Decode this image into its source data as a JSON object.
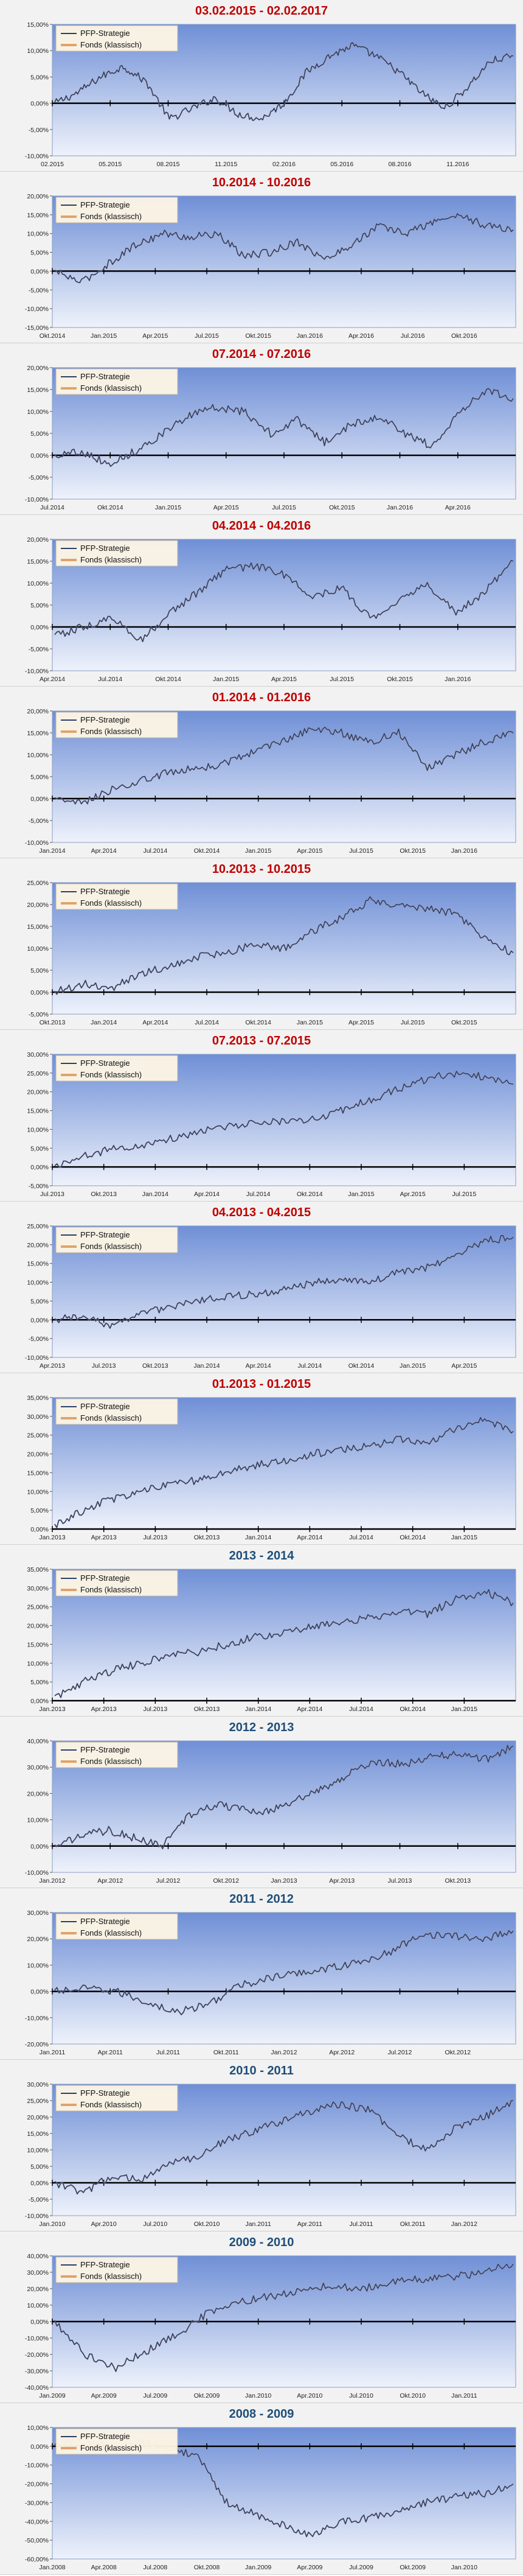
{
  "colors": {
    "title_red": "#c00000",
    "title_blue": "#1f4e79",
    "plot_top": "#6f8fd6",
    "plot_bottom": "#eef2fb",
    "series_strategy": "#2a3f6e",
    "series_fund": "#e0a36a",
    "zero_axis": "#000000"
  },
  "chart_data": [
    {
      "type": "line",
      "title": "03.02.2015 - 02.02.2017",
      "title_color": "red",
      "y_ticks": [
        "15,00%",
        "10,00%",
        "5,00%",
        "0,00%",
        "-5,00%",
        "-10,00%"
      ],
      "x_ticks": [
        "02.2015",
        "05.2015",
        "08.2015",
        "11.2015",
        "02.2016",
        "05.2016",
        "08.2016",
        "11.2016"
      ],
      "ylim": [
        -10,
        15
      ],
      "series": [
        {
          "name": "PFP-Strategie",
          "values": [
            0,
            2,
            5,
            7,
            4,
            -3,
            -1,
            1,
            -2,
            -3,
            0,
            6,
            9,
            11,
            9,
            6,
            2,
            -1,
            3,
            8,
            9
          ]
        },
        {
          "name": "Fonds (klassisch)",
          "values": [
            0,
            2,
            5,
            7,
            4,
            -3,
            -1,
            1,
            -2,
            -3,
            0,
            6,
            9,
            11,
            9,
            6,
            2,
            -1,
            3,
            8,
            9
          ]
        }
      ]
    },
    {
      "type": "line",
      "title": "10.2014 - 10.2016",
      "title_color": "red",
      "y_ticks": [
        "20,00%",
        "15,00%",
        "10,00%",
        "5,00%",
        "0,00%",
        "-5,00%",
        "-10,00%",
        "-15,00%"
      ],
      "x_ticks": [
        "Okt.2014",
        "Jan.2015",
        "Apr.2015",
        "Jul.2015",
        "Okt.2015",
        "Jan.2016",
        "Apr.2016",
        "Jul.2016",
        "Okt.2016"
      ],
      "ylim": [
        -15,
        20
      ],
      "series": [
        {
          "name": "PFP-Strategie",
          "values": [
            0,
            -3,
            2,
            7,
            10,
            9,
            10,
            4,
            5,
            8,
            3,
            7,
            12,
            10,
            13,
            15,
            12,
            11
          ]
        },
        {
          "name": "Fonds (klassisch)",
          "values": [
            0,
            -3,
            2,
            7,
            10,
            9,
            10,
            4,
            5,
            8,
            3,
            7,
            12,
            10,
            13,
            15,
            12,
            11
          ]
        }
      ]
    },
    {
      "type": "line",
      "title": "07.2014 - 07.2016",
      "title_color": "red",
      "y_ticks": [
        "20,00%",
        "15,00%",
        "10,00%",
        "5,00%",
        "0,00%",
        "-5,00%",
        "-10,00%"
      ],
      "x_ticks": [
        "Jul.2014",
        "Okt.2014",
        "Jan.2015",
        "Apr.2015",
        "Jul.2015",
        "Okt.2015",
        "Jan.2016",
        "Apr.2016"
      ],
      "ylim": [
        -10,
        20
      ],
      "series": [
        {
          "name": "PFP-Strategie",
          "values": [
            0,
            1,
            -2,
            1,
            5,
            9,
            11,
            10,
            5,
            8,
            3,
            7,
            9,
            5,
            2,
            10,
            15,
            13
          ]
        },
        {
          "name": "Fonds (klassisch)",
          "values": [
            0,
            1,
            -2,
            1,
            5,
            9,
            11,
            10,
            5,
            8,
            3,
            7,
            9,
            5,
            2,
            10,
            15,
            13
          ]
        }
      ]
    },
    {
      "type": "line",
      "title": "04.2014 - 04.2016",
      "title_color": "red",
      "y_ticks": [
        "20,00%",
        "15,00%",
        "10,00%",
        "5,00%",
        "0,00%",
        "-5,00%",
        "-10,00%"
      ],
      "x_ticks": [
        "Apr.2014",
        "Jul.2014",
        "Okt.2014",
        "Jan.2015",
        "Apr.2015",
        "Jul.2015",
        "Okt.2015",
        "Jan.2016"
      ],
      "ylim": [
        -10,
        20
      ],
      "series": [
        {
          "name": "PFP-Strategie",
          "values": [
            -2,
            0,
            2,
            -3,
            3,
            8,
            13,
            14,
            12,
            7,
            9,
            2,
            6,
            10,
            3,
            8,
            15
          ]
        },
        {
          "name": "Fonds (klassisch)",
          "values": [
            -2,
            0,
            2,
            -3,
            3,
            8,
            13,
            14,
            12,
            7,
            9,
            2,
            6,
            10,
            3,
            8,
            15
          ]
        }
      ]
    },
    {
      "type": "line",
      "title": "01.2014 - 01.2016",
      "title_color": "red",
      "y_ticks": [
        "20,00%",
        "15,00%",
        "10,00%",
        "5,00%",
        "0,00%",
        "-5,00%",
        "-10,00%"
      ],
      "x_ticks": [
        "Jan.2014",
        "Apr.2014",
        "Jul.2014",
        "Okt.2014",
        "Jan.2015",
        "Apr.2015",
        "Jul.2015",
        "Okt.2015",
        "Jan.2016"
      ],
      "ylim": [
        -10,
        20
      ],
      "series": [
        {
          "name": "PFP-Strategie",
          "values": [
            0,
            -1,
            2,
            4,
            6,
            7,
            8,
            11,
            13,
            16,
            15,
            13,
            15,
            7,
            10,
            13,
            15
          ]
        },
        {
          "name": "Fonds (klassisch)",
          "values": [
            0,
            -1,
            2,
            4,
            6,
            7,
            8,
            11,
            13,
            16,
            15,
            13,
            15,
            7,
            10,
            13,
            15
          ]
        }
      ]
    },
    {
      "type": "line",
      "title": "10.2013 - 10.2015",
      "title_color": "red",
      "y_ticks": [
        "25,00%",
        "20,00%",
        "15,00%",
        "10,00%",
        "5,00%",
        "0,00%",
        "-5,00%"
      ],
      "x_ticks": [
        "Okt.2013",
        "Jan.2014",
        "Apr.2014",
        "Jul.2014",
        "Okt.2014",
        "Jan.2015",
        "Apr.2015",
        "Jul.2015",
        "Okt.2015"
      ],
      "ylim": [
        -5,
        25
      ],
      "series": [
        {
          "name": "PFP-Strategie",
          "values": [
            0,
            2,
            1,
            4,
            6,
            8,
            9,
            11,
            10,
            14,
            17,
            21,
            20,
            19,
            18,
            12,
            9
          ]
        },
        {
          "name": "Fonds (klassisch)",
          "values": [
            0,
            2,
            1,
            4,
            6,
            8,
            9,
            11,
            10,
            14,
            17,
            21,
            20,
            19,
            18,
            12,
            9
          ]
        }
      ]
    },
    {
      "type": "line",
      "title": "07.2013 - 07.2015",
      "title_color": "red",
      "y_ticks": [
        "30,00%",
        "25,00%",
        "20,00%",
        "15,00%",
        "10,00%",
        "5,00%",
        "0,00%",
        "-5,00%"
      ],
      "x_ticks": [
        "Jul.2013",
        "Okt.2013",
        "Jan.2014",
        "Apr.2014",
        "Jul.2014",
        "Okt.2014",
        "Jan.2015",
        "Apr.2015",
        "Jul.2015"
      ],
      "ylim": [
        -5,
        30
      ],
      "series": [
        {
          "name": "PFP-Strategie",
          "values": [
            0,
            3,
            5,
            6,
            8,
            10,
            11,
            12,
            12,
            14,
            17,
            20,
            23,
            25,
            24,
            22
          ]
        },
        {
          "name": "Fonds (klassisch)",
          "values": [
            0,
            3,
            5,
            6,
            8,
            10,
            11,
            12,
            12,
            14,
            17,
            20,
            23,
            25,
            24,
            22
          ]
        }
      ]
    },
    {
      "type": "line",
      "title": "04.2013 - 04.2015",
      "title_color": "red",
      "y_ticks": [
        "25,00%",
        "20,00%",
        "15,00%",
        "10,00%",
        "5,00%",
        "0,00%",
        "-5,00%",
        "-10,00%"
      ],
      "x_ticks": [
        "Apr.2013",
        "Jul.2013",
        "Okt.2013",
        "Jan.2014",
        "Apr.2014",
        "Jul.2014",
        "Okt.2014",
        "Jan.2015",
        "Apr.2015"
      ],
      "ylim": [
        -10,
        25
      ],
      "series": [
        {
          "name": "PFP-Strategie",
          "values": [
            0,
            1,
            -2,
            2,
            3,
            5,
            6,
            7,
            8,
            10,
            11,
            10,
            13,
            14,
            17,
            21,
            22
          ]
        },
        {
          "name": "Fonds (klassisch)",
          "values": [
            0,
            1,
            -2,
            2,
            3,
            5,
            6,
            7,
            8,
            10,
            11,
            10,
            13,
            14,
            17,
            21,
            22
          ]
        }
      ]
    },
    {
      "type": "line",
      "title": "01.2013 - 01.2015",
      "title_color": "red",
      "y_ticks": [
        "35,00%",
        "30,00%",
        "25,00%",
        "20,00%",
        "15,00%",
        "10,00%",
        "5,00%",
        "0,00%"
      ],
      "x_ticks": [
        "Jan.2013",
        "Apr.2013",
        "Jul.2013",
        "Okt.2013",
        "Jan.2014",
        "Apr.2014",
        "Jul.2014",
        "Okt.2014",
        "Jan.2015"
      ],
      "ylim": [
        0,
        35
      ],
      "series": [
        {
          "name": "PFP-Strategie",
          "values": [
            1,
            5,
            8,
            10,
            12,
            13,
            15,
            17,
            18,
            20,
            21,
            22,
            24,
            23,
            27,
            29,
            26
          ]
        },
        {
          "name": "Fonds (klassisch)",
          "values": [
            1,
            5,
            8,
            10,
            12,
            13,
            15,
            17,
            18,
            20,
            21,
            22,
            24,
            23,
            27,
            29,
            26
          ]
        }
      ]
    },
    {
      "type": "line",
      "title": "2013 - 2014",
      "title_color": "blue",
      "y_ticks": [
        "35,00%",
        "30,00%",
        "25,00%",
        "20,00%",
        "15,00%",
        "10,00%",
        "5,00%",
        "0,00%"
      ],
      "x_ticks": [
        "Jan.2013",
        "Apr.2013",
        "Jul.2013",
        "Okt.2013",
        "Jan.2014",
        "Apr.2014",
        "Jul.2014",
        "Okt.2014",
        "Jan.2015"
      ],
      "ylim": [
        0,
        35
      ],
      "series": [
        {
          "name": "PFP-Strategie",
          "values": [
            1,
            5,
            8,
            10,
            12,
            13,
            15,
            17,
            18,
            20,
            21,
            22,
            24,
            23,
            27,
            29,
            26
          ]
        },
        {
          "name": "Fonds (klassisch)",
          "values": [
            1,
            5,
            8,
            10,
            12,
            13,
            15,
            17,
            18,
            20,
            21,
            22,
            24,
            23,
            27,
            29,
            26
          ]
        }
      ]
    },
    {
      "type": "line",
      "title": "2012 - 2013",
      "title_color": "blue",
      "y_ticks": [
        "40,00%",
        "30,00%",
        "20,00%",
        "10,00%",
        "0,00%",
        "-10,00%"
      ],
      "x_ticks": [
        "Jan.2012",
        "Apr.2012",
        "Jul.2012",
        "Okt.2012",
        "Jan.2013",
        "Apr.2013",
        "Jul.2013",
        "Okt.2013"
      ],
      "ylim": [
        -10,
        40
      ],
      "series": [
        {
          "name": "PFP-Strategie",
          "values": [
            0,
            4,
            6,
            3,
            0,
            12,
            16,
            14,
            13,
            18,
            22,
            28,
            32,
            31,
            34,
            35,
            33,
            38
          ]
        },
        {
          "name": "Fonds (klassisch)",
          "values": [
            0,
            4,
            6,
            3,
            0,
            12,
            16,
            14,
            13,
            18,
            22,
            28,
            32,
            31,
            34,
            35,
            33,
            38
          ]
        }
      ]
    },
    {
      "type": "line",
      "title": "2011 - 2012",
      "title_color": "blue",
      "y_ticks": [
        "30,00%",
        "20,00%",
        "10,00%",
        "0,00%",
        "-10,00%",
        "-20,00%"
      ],
      "x_ticks": [
        "Jan.2011",
        "Apr.2011",
        "Jul.2011",
        "Okt.2011",
        "Jan.2012",
        "Apr.2012",
        "Jul.2012",
        "Okt.2012"
      ],
      "ylim": [
        -20,
        30
      ],
      "series": [
        {
          "name": "PFP-Strategie",
          "values": [
            0,
            1,
            0,
            -4,
            -8,
            -5,
            2,
            5,
            7,
            9,
            11,
            15,
            22,
            21,
            20,
            23
          ]
        },
        {
          "name": "Fonds (klassisch)",
          "values": [
            0,
            1,
            0,
            -4,
            -8,
            -5,
            2,
            5,
            7,
            9,
            11,
            15,
            22,
            21,
            20,
            23
          ]
        }
      ]
    },
    {
      "type": "line",
      "title": "2010 - 2011",
      "title_color": "blue",
      "y_ticks": [
        "30,00%",
        "25,00%",
        "20,00%",
        "15,00%",
        "10,00%",
        "5,00%",
        "0,00%",
        "-5,00%",
        "-10,00%"
      ],
      "x_ticks": [
        "Jan.2010",
        "Apr.2010",
        "Jul.2010",
        "Okt.2010",
        "Jan.2011",
        "Apr.2011",
        "Jul.2011",
        "Okt.2011",
        "Jan.2012"
      ],
      "ylim": [
        -10,
        30
      ],
      "series": [
        {
          "name": "PFP-Strategie",
          "values": [
            0,
            -3,
            2,
            1,
            6,
            8,
            13,
            16,
            19,
            22,
            24,
            22,
            14,
            10,
            17,
            20,
            25
          ]
        },
        {
          "name": "Fonds (klassisch)",
          "values": [
            0,
            -3,
            2,
            1,
            6,
            8,
            13,
            16,
            19,
            22,
            24,
            22,
            14,
            10,
            17,
            20,
            25
          ]
        }
      ]
    },
    {
      "type": "line",
      "title": "2009 - 2010",
      "title_color": "blue",
      "y_ticks": [
        "40,00%",
        "30,00%",
        "20,00%",
        "10,00%",
        "0,00%",
        "-10,00%",
        "-20,00%",
        "-30,00%",
        "-40,00%"
      ],
      "x_ticks": [
        "Jan.2009",
        "Apr.2009",
        "Jul.2009",
        "Okt.2009",
        "Jan.2010",
        "Apr.2010",
        "Jul.2010",
        "Okt.2010",
        "Jan.2011"
      ],
      "ylim": [
        -40,
        40
      ],
      "series": [
        {
          "name": "PFP-Strategie",
          "values": [
            0,
            -20,
            -28,
            -18,
            -8,
            5,
            12,
            15,
            18,
            22,
            20,
            24,
            26,
            27,
            30,
            35
          ]
        },
        {
          "name": "Fonds (klassisch)",
          "values": [
            0,
            -20,
            -28,
            -18,
            -8,
            5,
            12,
            15,
            18,
            22,
            20,
            24,
            26,
            27,
            30,
            35
          ]
        }
      ]
    },
    {
      "type": "line",
      "title": "2008 - 2009",
      "title_color": "blue",
      "y_ticks": [
        "10,00%",
        "0,00%",
        "-10,00%",
        "-20,00%",
        "-30,00%",
        "-40,00%",
        "-50,00%",
        "-60,00%"
      ],
      "x_ticks": [
        "Jan.2008",
        "Apr.2008",
        "Jul.2008",
        "Okt.2008",
        "Jan.2009",
        "Apr.2009",
        "Jul.2009",
        "Okt.2009",
        "Jan.2010"
      ],
      "ylim": [
        -60,
        10
      ],
      "series": [
        {
          "name": "PFP-Strategie",
          "values": [
            0,
            5,
            -2,
            2,
            -1,
            -5,
            -30,
            -36,
            -42,
            -48,
            -40,
            -38,
            -35,
            -30,
            -27,
            -25,
            -20
          ]
        },
        {
          "name": "Fonds (klassisch)",
          "values": [
            0,
            5,
            -2,
            2,
            -1,
            -5,
            -30,
            -36,
            -42,
            -48,
            -40,
            -38,
            -35,
            -30,
            -27,
            -25,
            -20
          ]
        }
      ]
    }
  ]
}
